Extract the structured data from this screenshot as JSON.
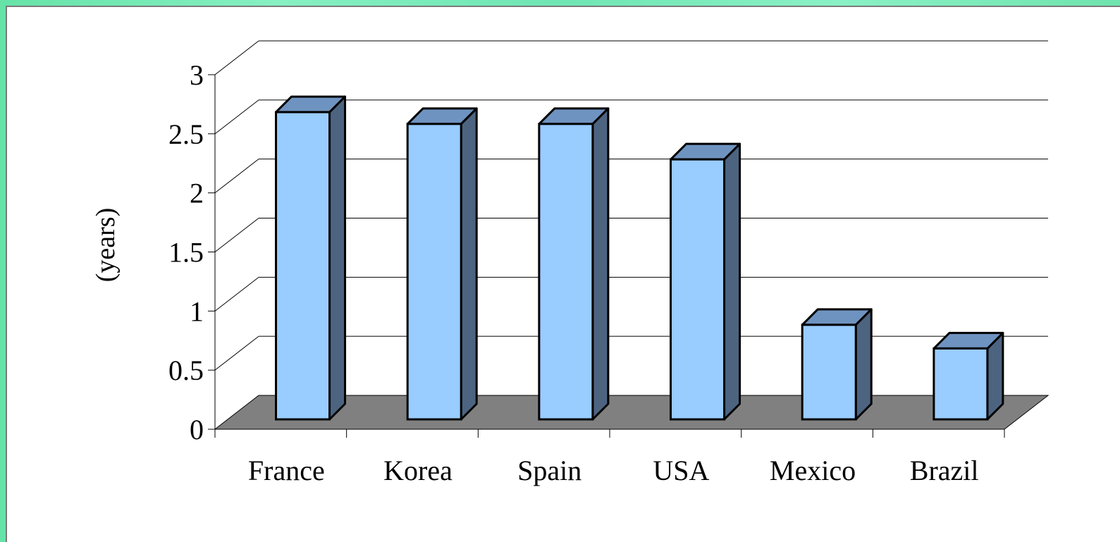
{
  "chart_data": {
    "type": "bar",
    "style": "3d-column",
    "categories": [
      "France",
      "Korea",
      "Spain",
      "USA",
      "Mexico",
      "Brazil"
    ],
    "values": [
      2.6,
      2.5,
      2.5,
      2.2,
      0.8,
      0.6
    ],
    "title": "",
    "xlabel": "",
    "ylabel": "(years)",
    "ylim": [
      0,
      3
    ],
    "yticks": [
      "0",
      "0.5",
      "1",
      "1.5",
      "2",
      "2.5",
      "3"
    ],
    "grid": true,
    "legend": "none",
    "colors": {
      "bar_front": "#99ccff",
      "bar_top": "#6f93c0",
      "bar_side": "#4d6481",
      "floor": "#808080",
      "background": "#ffffff",
      "slide_background": "#7eecba"
    }
  }
}
